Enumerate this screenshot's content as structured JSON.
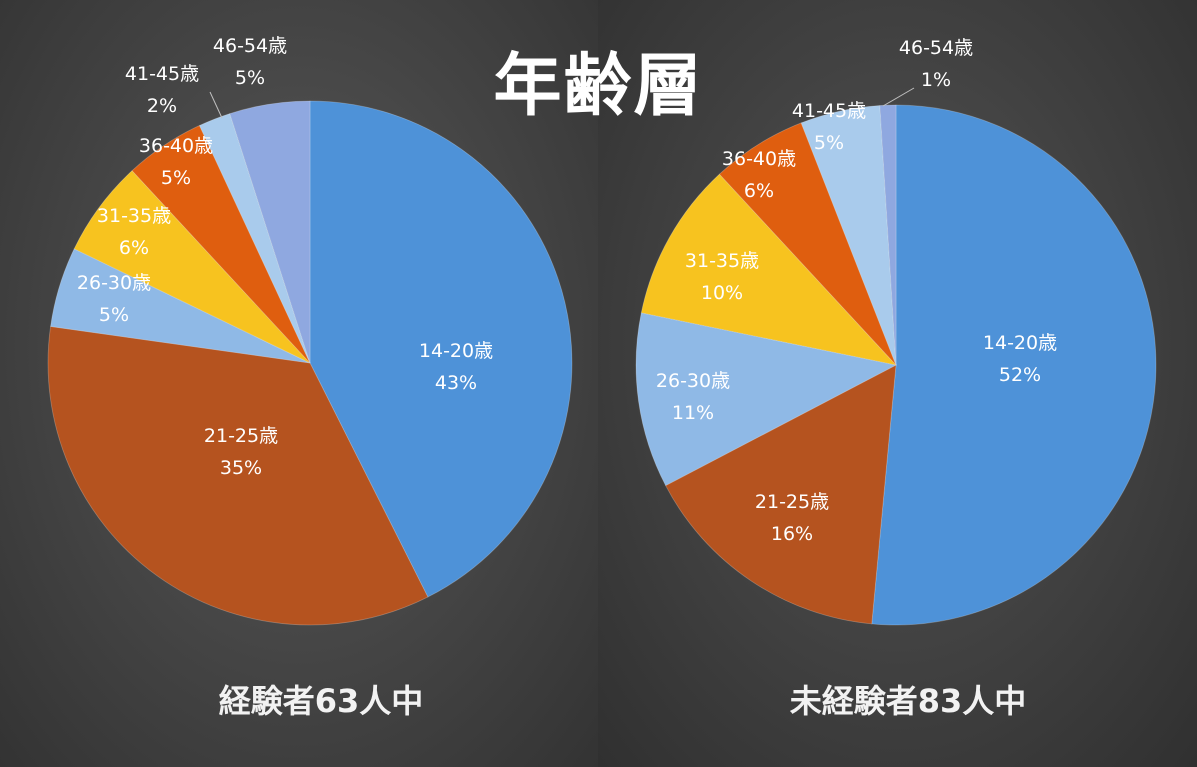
{
  "title": "年齢層",
  "colors": {
    "14-20歳": "#4e92d8",
    "21-25歳": "#b5531f",
    "26-30歳": "#8fb9e6",
    "31-35歳": "#f7c31f",
    "36-40歳": "#df5e0f",
    "41-45歳": "#a9cbec",
    "46-54歳": "#8fa8e0"
  },
  "chart_data": [
    {
      "type": "pie",
      "title": "経験者63人中",
      "categories": [
        "14-20歳",
        "21-25歳",
        "26-30歳",
        "31-35歳",
        "36-40歳",
        "41-45歳",
        "46-54歳"
      ],
      "values": [
        43,
        35,
        5,
        6,
        5,
        2,
        5
      ],
      "labels": [
        "43%",
        "35%",
        "5%",
        "6%",
        "5%",
        "2%",
        "5%"
      ]
    },
    {
      "type": "pie",
      "title": "未経験者83人中",
      "categories": [
        "14-20歳",
        "21-25歳",
        "26-30歳",
        "31-35歳",
        "36-40歳",
        "41-45歳",
        "46-54歳"
      ],
      "values": [
        52,
        16,
        11,
        10,
        6,
        5,
        1
      ],
      "labels": [
        "52%",
        "16%",
        "11%",
        "10%",
        "6%",
        "5%",
        "1%"
      ]
    }
  ]
}
